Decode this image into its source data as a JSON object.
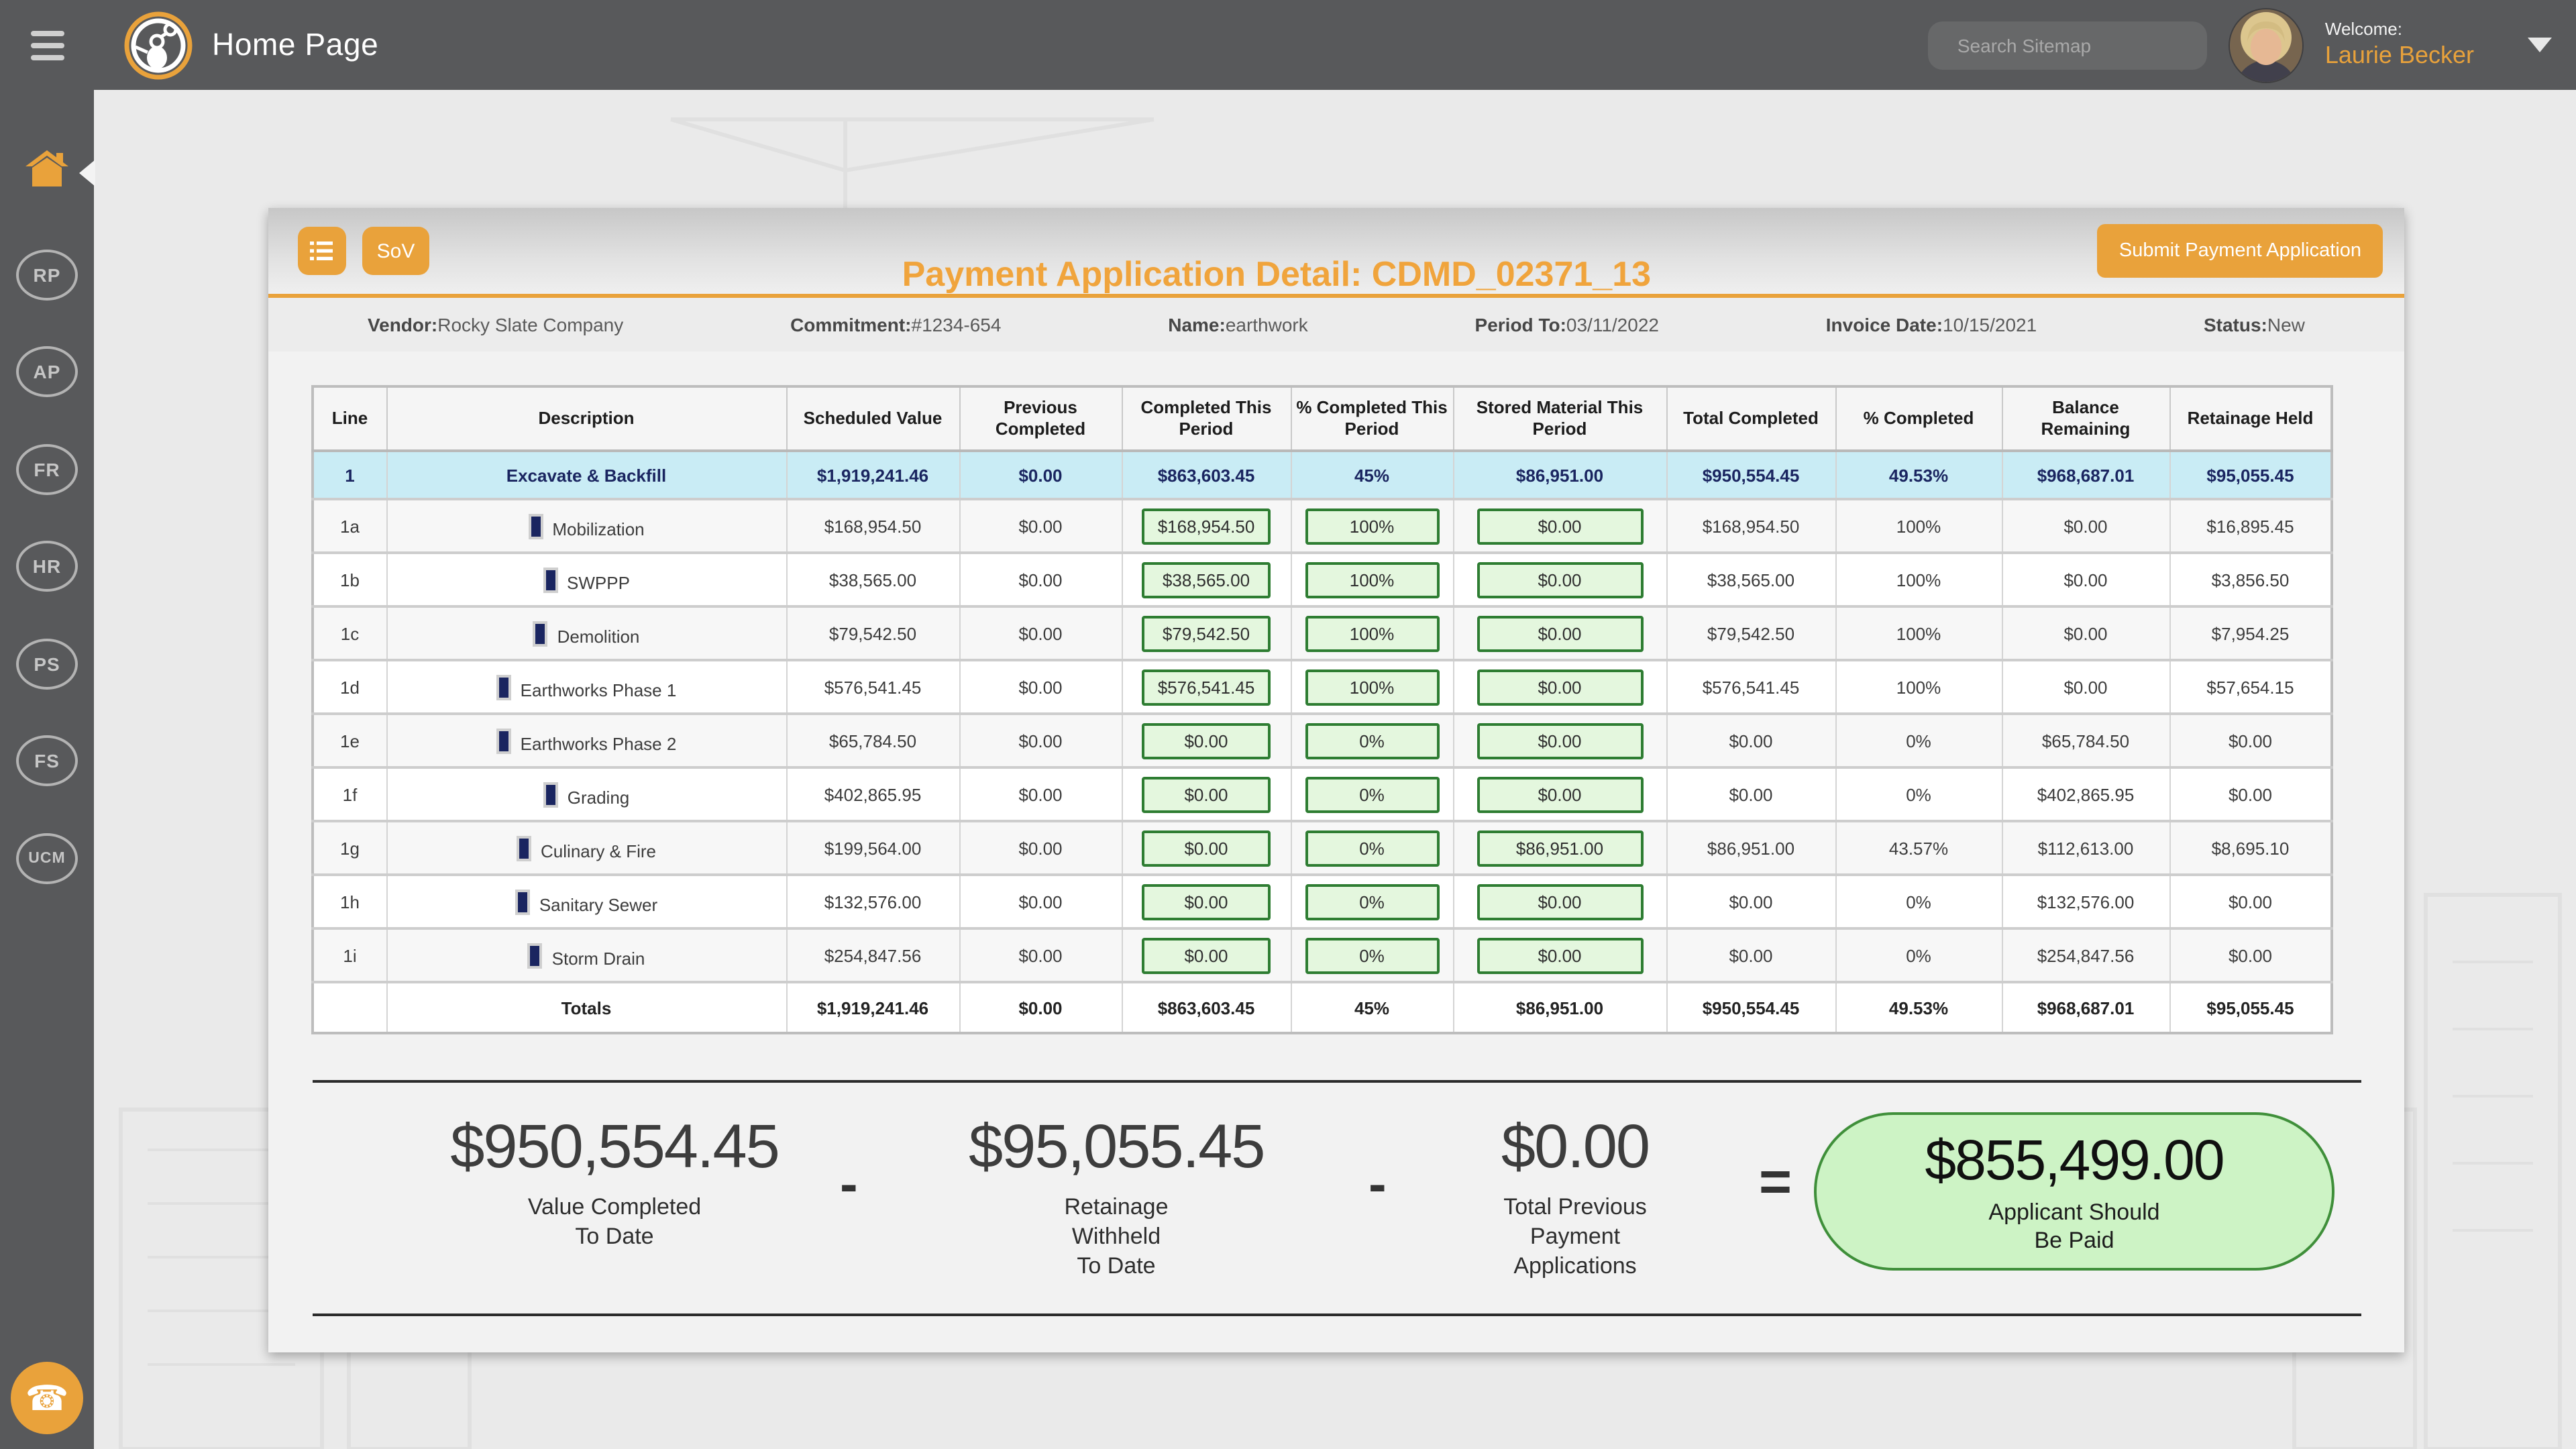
{
  "colors": {
    "accent_orange": "#E9A23B",
    "title_orange": "#F0A43C",
    "chrome_gray": "#58595B",
    "highlight_row_blue": "#C9ECF5",
    "highlight_text_navy": "#1A2560",
    "input_green_bg": "#E4F7DE",
    "input_green_border": "#2E7D32",
    "result_pill_bg": "#CDF3C5",
    "result_pill_border": "#3F8F3A"
  },
  "header": {
    "app_title": "Home Page",
    "search_placeholder": "Search Sitemap",
    "search_value": "",
    "welcome_label": "Welcome:",
    "user_name": "Laurie Becker"
  },
  "sidebar": {
    "items": [
      {
        "label": "RP"
      },
      {
        "label": "AP"
      },
      {
        "label": "FR"
      },
      {
        "label": "HR"
      },
      {
        "label": "PS"
      },
      {
        "label": "FS"
      },
      {
        "label": "UCM"
      }
    ]
  },
  "toolbar": {
    "sov_button_label": "SoV",
    "submit_button_label": "Submit Payment Application"
  },
  "page": {
    "title": "Payment Application Detail: CDMD_02371_13"
  },
  "info": [
    {
      "label": "Vendor:",
      "value": "Rocky Slate Company"
    },
    {
      "label": "Commitment:",
      "value": "#1234-654"
    },
    {
      "label": "Name:",
      "value": "earthwork"
    },
    {
      "label": "Period To:",
      "value": "03/11/2022"
    },
    {
      "label": "Invoice Date:",
      "value": "10/15/2021"
    },
    {
      "label": "Status:",
      "value": "New"
    }
  ],
  "table": {
    "headers": [
      "Line",
      "Description",
      "Scheduled Value",
      "Previous Completed",
      "Completed This Period",
      "% Completed This Period",
      "Stored Material This Period",
      "Total Completed",
      "% Completed",
      "Balance Remaining",
      "Retainage Held"
    ],
    "rows": [
      {
        "type": "summary",
        "line": "1",
        "description": "Excavate & Backfill",
        "scheduled_value": "$1,919,241.46",
        "previous_completed": "$0.00",
        "completed_this_period": "$863,603.45",
        "pct_completed_this_period": "45%",
        "stored_material_this_period": "$86,951.00",
        "total_completed": "$950,554.45",
        "pct_completed": "49.53%",
        "balance_remaining": "$968,687.01",
        "retainage_held": "$95,055.45"
      },
      {
        "type": "item",
        "line": "1a",
        "description": "Mobilization",
        "scheduled_value": "$168,954.50",
        "previous_completed": "$0.00",
        "completed_this_period": "$168,954.50",
        "pct_completed_this_period": "100%",
        "stored_material_this_period": "$0.00",
        "total_completed": "$168,954.50",
        "pct_completed": "100%",
        "balance_remaining": "$0.00",
        "retainage_held": "$16,895.45"
      },
      {
        "type": "item",
        "line": "1b",
        "description": "SWPPP",
        "scheduled_value": "$38,565.00",
        "previous_completed": "$0.00",
        "completed_this_period": "$38,565.00",
        "pct_completed_this_period": "100%",
        "stored_material_this_period": "$0.00",
        "total_completed": "$38,565.00",
        "pct_completed": "100%",
        "balance_remaining": "$0.00",
        "retainage_held": "$3,856.50"
      },
      {
        "type": "item",
        "line": "1c",
        "description": "Demolition",
        "scheduled_value": "$79,542.50",
        "previous_completed": "$0.00",
        "completed_this_period": "$79,542.50",
        "pct_completed_this_period": "100%",
        "stored_material_this_period": "$0.00",
        "total_completed": "$79,542.50",
        "pct_completed": "100%",
        "balance_remaining": "$0.00",
        "retainage_held": "$7,954.25"
      },
      {
        "type": "item",
        "line": "1d",
        "description": "Earthworks Phase 1",
        "scheduled_value": "$576,541.45",
        "previous_completed": "$0.00",
        "completed_this_period": "$576,541.45",
        "pct_completed_this_period": "100%",
        "stored_material_this_period": "$0.00",
        "total_completed": "$576,541.45",
        "pct_completed": "100%",
        "balance_remaining": "$0.00",
        "retainage_held": "$57,654.15"
      },
      {
        "type": "item",
        "line": "1e",
        "description": "Earthworks Phase 2",
        "scheduled_value": "$65,784.50",
        "previous_completed": "$0.00",
        "completed_this_period": "$0.00",
        "pct_completed_this_period": "0%",
        "stored_material_this_period": "$0.00",
        "total_completed": "$0.00",
        "pct_completed": "0%",
        "balance_remaining": "$65,784.50",
        "retainage_held": "$0.00"
      },
      {
        "type": "item",
        "line": "1f",
        "description": "Grading",
        "scheduled_value": "$402,865.95",
        "previous_completed": "$0.00",
        "completed_this_period": "$0.00",
        "pct_completed_this_period": "0%",
        "stored_material_this_period": "$0.00",
        "total_completed": "$0.00",
        "pct_completed": "0%",
        "balance_remaining": "$402,865.95",
        "retainage_held": "$0.00"
      },
      {
        "type": "item",
        "line": "1g",
        "description": "Culinary & Fire",
        "scheduled_value": "$199,564.00",
        "previous_completed": "$0.00",
        "completed_this_period": "$0.00",
        "pct_completed_this_period": "0%",
        "stored_material_this_period": "$86,951.00",
        "total_completed": "$86,951.00",
        "pct_completed": "43.57%",
        "balance_remaining": "$112,613.00",
        "retainage_held": "$8,695.10"
      },
      {
        "type": "item",
        "line": "1h",
        "description": "Sanitary Sewer",
        "scheduled_value": "$132,576.00",
        "previous_completed": "$0.00",
        "completed_this_period": "$0.00",
        "pct_completed_this_period": "0%",
        "stored_material_this_period": "$0.00",
        "total_completed": "$0.00",
        "pct_completed": "0%",
        "balance_remaining": "$132,576.00",
        "retainage_held": "$0.00"
      },
      {
        "type": "item",
        "line": "1i",
        "description": "Storm Drain",
        "scheduled_value": "$254,847.56",
        "previous_completed": "$0.00",
        "completed_this_period": "$0.00",
        "pct_completed_this_period": "0%",
        "stored_material_this_period": "$0.00",
        "total_completed": "$0.00",
        "pct_completed": "0%",
        "balance_remaining": "$254,847.56",
        "retainage_held": "$0.00"
      },
      {
        "type": "totals",
        "line": "",
        "description": "Totals",
        "scheduled_value": "$1,919,241.46",
        "previous_completed": "$0.00",
        "completed_this_period": "$863,603.45",
        "pct_completed_this_period": "45%",
        "stored_material_this_period": "$86,951.00",
        "total_completed": "$950,554.45",
        "pct_completed": "49.53%",
        "balance_remaining": "$968,687.01",
        "retainage_held": "$95,055.45"
      }
    ]
  },
  "summary": {
    "items": [
      {
        "value": "$950,554.45",
        "label": "Value Completed\nTo Date"
      },
      {
        "value": "$95,055.45",
        "label": "Retainage\nWithheld\nTo Date"
      },
      {
        "value": "$0.00",
        "label": "Total Previous\nPayment\nApplications"
      }
    ],
    "operators": {
      "minus": "-",
      "equals": "="
    },
    "result": {
      "value": "$855,499.00",
      "label": "Applicant Should\nBe Paid"
    }
  }
}
